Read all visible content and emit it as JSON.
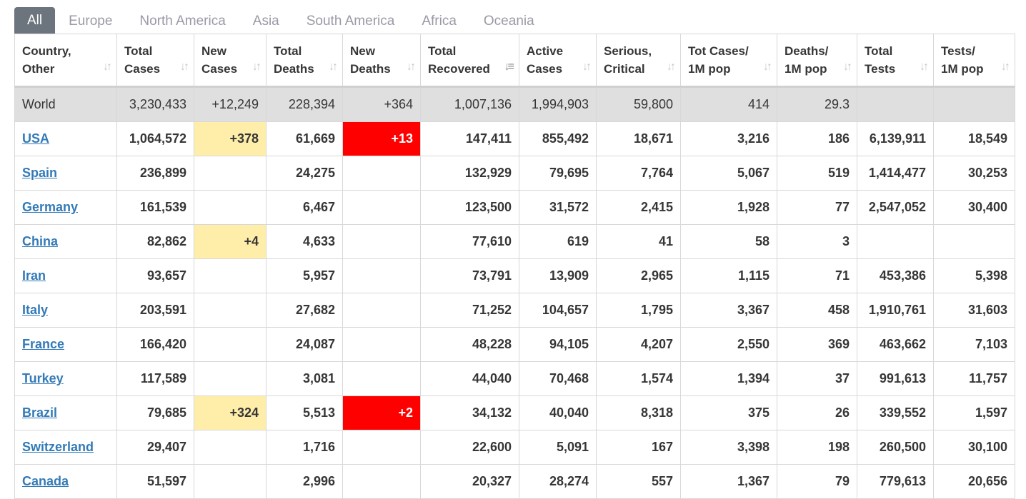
{
  "tabs": [
    "All",
    "Europe",
    "North America",
    "Asia",
    "South America",
    "Africa",
    "Oceania"
  ],
  "active_tab": "All",
  "columns": [
    {
      "l1": "Country,",
      "l2": "Other"
    },
    {
      "l1": "Total",
      "l2": "Cases"
    },
    {
      "l1": "New",
      "l2": "Cases"
    },
    {
      "l1": "Total",
      "l2": "Deaths"
    },
    {
      "l1": "New",
      "l2": "Deaths"
    },
    {
      "l1": "Total",
      "l2": "Recovered"
    },
    {
      "l1": "Active",
      "l2": "Cases"
    },
    {
      "l1": "Serious,",
      "l2": "Critical"
    },
    {
      "l1": "Tot Cases/",
      "l2": "1M pop"
    },
    {
      "l1": "Deaths/",
      "l2": "1M pop"
    },
    {
      "l1": "Total",
      "l2": "Tests"
    },
    {
      "l1": "Tests/",
      "l2": "1M pop"
    }
  ],
  "sorted_column": 5,
  "colors": {
    "new_cases_bg": "#ffeeaa",
    "new_deaths_bg": "#ff0000",
    "world_row_bg": "#dfdfdf",
    "link": "#337ab7",
    "active_tab_bg": "#6c757d"
  },
  "rows": [
    {
      "country": "World",
      "link": false,
      "cells": [
        "3,230,433",
        "+12,249",
        "228,394",
        "+364",
        "1,007,136",
        "1,994,903",
        "59,800",
        "414",
        "29.3",
        "",
        ""
      ]
    },
    {
      "country": "USA",
      "link": true,
      "cells": [
        "1,064,572",
        "+378",
        "61,669",
        "+13",
        "147,411",
        "855,492",
        "18,671",
        "3,216",
        "186",
        "6,139,911",
        "18,549"
      ]
    },
    {
      "country": "Spain",
      "link": true,
      "cells": [
        "236,899",
        "",
        "24,275",
        "",
        "132,929",
        "79,695",
        "7,764",
        "5,067",
        "519",
        "1,414,477",
        "30,253"
      ]
    },
    {
      "country": "Germany",
      "link": true,
      "cells": [
        "161,539",
        "",
        "6,467",
        "",
        "123,500",
        "31,572",
        "2,415",
        "1,928",
        "77",
        "2,547,052",
        "30,400"
      ]
    },
    {
      "country": "China",
      "link": true,
      "cells": [
        "82,862",
        "+4",
        "4,633",
        "",
        "77,610",
        "619",
        "41",
        "58",
        "3",
        "",
        ""
      ]
    },
    {
      "country": "Iran",
      "link": true,
      "cells": [
        "93,657",
        "",
        "5,957",
        "",
        "73,791",
        "13,909",
        "2,965",
        "1,115",
        "71",
        "453,386",
        "5,398"
      ]
    },
    {
      "country": "Italy",
      "link": true,
      "cells": [
        "203,591",
        "",
        "27,682",
        "",
        "71,252",
        "104,657",
        "1,795",
        "3,367",
        "458",
        "1,910,761",
        "31,603"
      ]
    },
    {
      "country": "France",
      "link": true,
      "cells": [
        "166,420",
        "",
        "24,087",
        "",
        "48,228",
        "94,105",
        "4,207",
        "2,550",
        "369",
        "463,662",
        "7,103"
      ]
    },
    {
      "country": "Turkey",
      "link": true,
      "cells": [
        "117,589",
        "",
        "3,081",
        "",
        "44,040",
        "70,468",
        "1,574",
        "1,394",
        "37",
        "991,613",
        "11,757"
      ]
    },
    {
      "country": "Brazil",
      "link": true,
      "cells": [
        "79,685",
        "+324",
        "5,513",
        "+2",
        "34,132",
        "40,040",
        "8,318",
        "375",
        "26",
        "339,552",
        "1,597"
      ]
    },
    {
      "country": "Switzerland",
      "link": true,
      "cells": [
        "29,407",
        "",
        "1,716",
        "",
        "22,600",
        "5,091",
        "167",
        "3,398",
        "198",
        "260,500",
        "30,100"
      ]
    },
    {
      "country": "Canada",
      "link": true,
      "cells": [
        "51,597",
        "",
        "2,996",
        "",
        "20,327",
        "28,274",
        "557",
        "1,367",
        "79",
        "779,613",
        "20,656"
      ]
    }
  ]
}
